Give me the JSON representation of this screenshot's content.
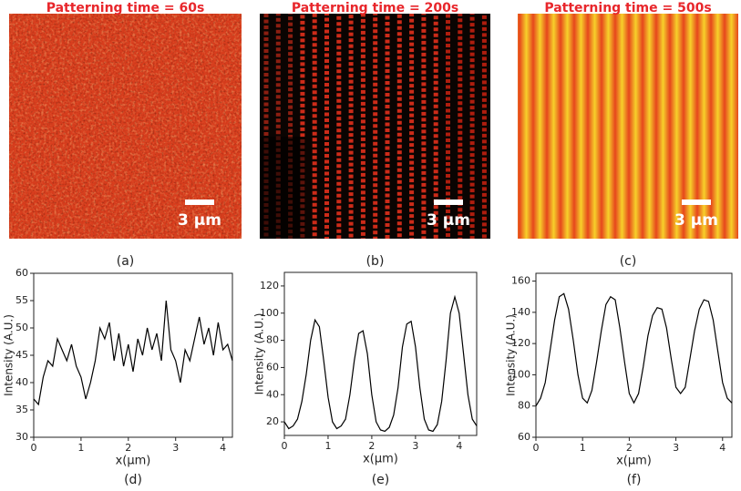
{
  "images": [
    {
      "title": "Patterning time = 60s",
      "scale_bar": "3 μm",
      "panel_label": "(a)"
    },
    {
      "title": "Patterning time = 200s",
      "scale_bar": "3 μm",
      "panel_label": "(b)"
    },
    {
      "title": "Patterning time = 500s",
      "scale_bar": "3 μm",
      "panel_label": "(c)"
    }
  ],
  "chart_data": [
    {
      "type": "line",
      "panel_label": "(d)",
      "x_label": "x(μm)",
      "y_label": "Intensity (A.U.)",
      "color": "#000000",
      "x": [
        0,
        0.1,
        0.2,
        0.3,
        0.4,
        0.5,
        0.6,
        0.7,
        0.8,
        0.9,
        1.0,
        1.1,
        1.2,
        1.3,
        1.4,
        1.5,
        1.6,
        1.7,
        1.8,
        1.9,
        2.0,
        2.1,
        2.2,
        2.3,
        2.4,
        2.5,
        2.6,
        2.7,
        2.8,
        2.9,
        3.0,
        3.1,
        3.2,
        3.3,
        3.4,
        3.5,
        3.6,
        3.7,
        3.8,
        3.9,
        4.0,
        4.1,
        4.2
      ],
      "values": [
        37,
        36,
        41,
        44,
        43,
        48,
        46,
        44,
        47,
        43,
        41,
        37,
        40,
        44,
        50,
        48,
        51,
        44,
        49,
        43,
        47,
        42,
        48,
        45,
        50,
        46,
        49,
        44,
        55,
        46,
        44,
        40,
        46,
        44,
        48,
        52,
        47,
        50,
        45,
        51,
        46,
        47,
        44
      ],
      "xlim": [
        0,
        4.2
      ],
      "xticks": [
        0,
        1,
        2,
        3,
        4
      ],
      "ylim": [
        30,
        60
      ],
      "yticks": [
        30,
        35,
        40,
        45,
        50,
        55,
        60
      ]
    },
    {
      "type": "line",
      "panel_label": "(e)",
      "x_label": "x(μm)",
      "y_label": "Intensity (A.U.)",
      "color": "#000000",
      "x": [
        0,
        0.1,
        0.2,
        0.3,
        0.4,
        0.5,
        0.6,
        0.7,
        0.8,
        0.9,
        1.0,
        1.1,
        1.2,
        1.3,
        1.4,
        1.5,
        1.6,
        1.7,
        1.8,
        1.9,
        2.0,
        2.1,
        2.2,
        2.3,
        2.4,
        2.5,
        2.6,
        2.7,
        2.8,
        2.9,
        3.0,
        3.1,
        3.2,
        3.3,
        3.4,
        3.5,
        3.6,
        3.7,
        3.8,
        3.9,
        4.0,
        4.1,
        4.2,
        4.3,
        4.4
      ],
      "values": [
        20,
        15,
        17,
        22,
        35,
        55,
        80,
        95,
        90,
        65,
        38,
        20,
        15,
        17,
        22,
        40,
        65,
        85,
        87,
        70,
        40,
        20,
        14,
        13,
        16,
        25,
        45,
        75,
        92,
        94,
        75,
        45,
        22,
        14,
        13,
        18,
        35,
        65,
        100,
        112,
        100,
        70,
        40,
        22,
        17
      ],
      "xlim": [
        0,
        4.4
      ],
      "xticks": [
        0,
        1,
        2,
        3,
        4
      ],
      "ylim": [
        10,
        130
      ],
      "yticks": [
        20,
        40,
        60,
        80,
        100,
        120
      ]
    },
    {
      "type": "line",
      "panel_label": "(f)",
      "x_label": "x(μm)",
      "y_label": "Intensity (A.U.)",
      "color": "#000000",
      "x": [
        0,
        0.1,
        0.2,
        0.3,
        0.4,
        0.5,
        0.6,
        0.7,
        0.8,
        0.9,
        1.0,
        1.1,
        1.2,
        1.3,
        1.4,
        1.5,
        1.6,
        1.7,
        1.8,
        1.9,
        2.0,
        2.1,
        2.2,
        2.3,
        2.4,
        2.5,
        2.6,
        2.7,
        2.8,
        2.9,
        3.0,
        3.1,
        3.2,
        3.3,
        3.4,
        3.5,
        3.6,
        3.7,
        3.8,
        3.9,
        4.0,
        4.1,
        4.2
      ],
      "values": [
        80,
        85,
        95,
        115,
        135,
        150,
        152,
        142,
        122,
        100,
        85,
        82,
        90,
        108,
        128,
        145,
        150,
        148,
        130,
        108,
        88,
        82,
        88,
        105,
        125,
        138,
        143,
        142,
        130,
        110,
        92,
        88,
        92,
        110,
        128,
        142,
        148,
        147,
        135,
        115,
        95,
        85,
        82
      ],
      "xlim": [
        0,
        4.2
      ],
      "xticks": [
        0,
        1,
        2,
        3,
        4
      ],
      "ylim": [
        60,
        165
      ],
      "yticks": [
        60,
        80,
        100,
        120,
        140,
        160
      ]
    }
  ]
}
